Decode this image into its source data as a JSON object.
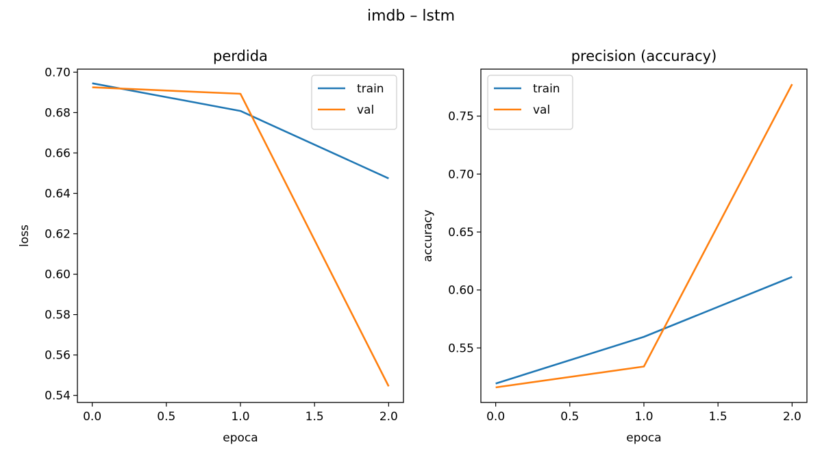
{
  "figure": {
    "suptitle": "imdb – lstm"
  },
  "chart_data": [
    {
      "type": "line",
      "title": "perdida",
      "xlabel": "epoca",
      "ylabel": "loss",
      "x": [
        0,
        1,
        2
      ],
      "xlim": [
        -0.1,
        2.1
      ],
      "ylim": [
        0.5365,
        0.7015
      ],
      "xticks": [
        0.0,
        0.5,
        1.0,
        1.5,
        2.0
      ],
      "xtick_labels": [
        "0.0",
        "0.5",
        "1.0",
        "1.5",
        "2.0"
      ],
      "yticks": [
        0.54,
        0.56,
        0.58,
        0.6,
        0.62,
        0.64,
        0.66,
        0.68,
        0.7
      ],
      "ytick_labels": [
        "0.54",
        "0.56",
        "0.58",
        "0.60",
        "0.62",
        "0.64",
        "0.66",
        "0.68",
        "0.70"
      ],
      "legend_position": "upper right",
      "series": [
        {
          "name": "train",
          "color": "#1f77b4",
          "values": [
            0.6945,
            0.6808,
            0.6474
          ]
        },
        {
          "name": "val",
          "color": "#ff7f0e",
          "values": [
            0.6925,
            0.6893,
            0.5445
          ]
        }
      ]
    },
    {
      "type": "line",
      "title": "precision (accuracy)",
      "xlabel": "epoca",
      "ylabel": "accuracy",
      "x": [
        0,
        1,
        2
      ],
      "xlim": [
        -0.1,
        2.1
      ],
      "ylim": [
        0.503,
        0.7905
      ],
      "xticks": [
        0.0,
        0.5,
        1.0,
        1.5,
        2.0
      ],
      "xtick_labels": [
        "0.0",
        "0.5",
        "1.0",
        "1.5",
        "2.0"
      ],
      "yticks": [
        0.55,
        0.6,
        0.65,
        0.7,
        0.75
      ],
      "ytick_labels": [
        "0.55",
        "0.60",
        "0.65",
        "0.70",
        "0.75"
      ],
      "legend_position": "upper left",
      "series": [
        {
          "name": "train",
          "color": "#1f77b4",
          "values": [
            0.5193,
            0.5596,
            0.6113
          ]
        },
        {
          "name": "val",
          "color": "#ff7f0e",
          "values": [
            0.516,
            0.534,
            0.7775
          ]
        }
      ]
    }
  ]
}
